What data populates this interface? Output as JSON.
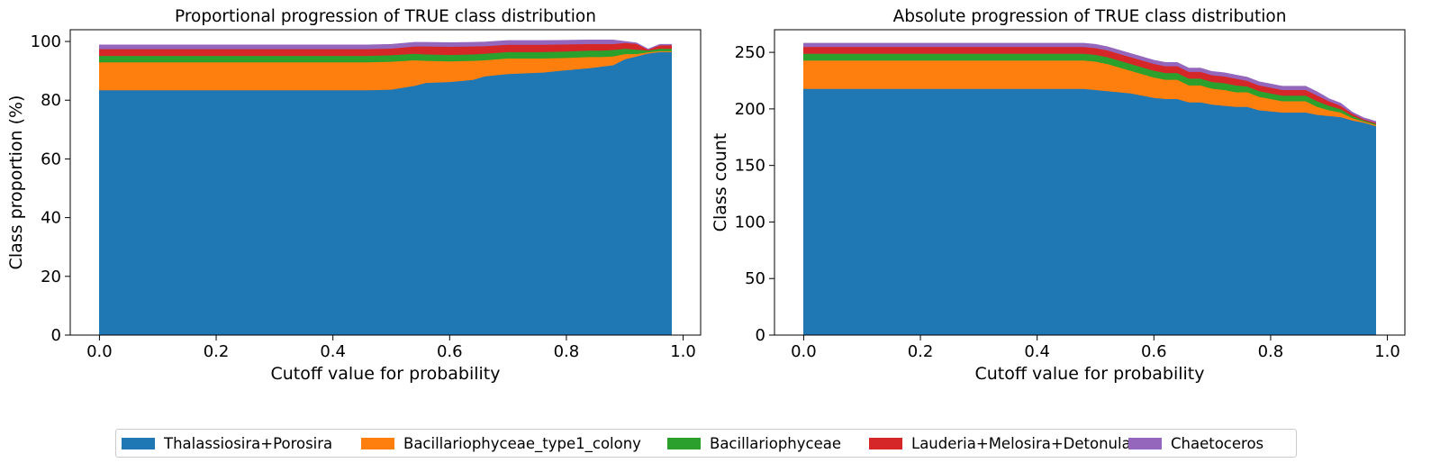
{
  "chart_data": [
    {
      "type": "area",
      "stacked": true,
      "title": "Proportional progression of TRUE class distribution",
      "xlabel": "Cutoff value for probability",
      "ylabel": "Class proportion (%)",
      "xlim": [
        -0.05,
        1.03
      ],
      "ylim": [
        0,
        104
      ],
      "xticks": [
        "0.0",
        "0.2",
        "0.4",
        "0.6",
        "0.8",
        "1.0"
      ],
      "yticks": [
        "0",
        "20",
        "40",
        "60",
        "80",
        "100"
      ],
      "x": [
        0.0,
        0.1,
        0.2,
        0.3,
        0.4,
        0.46,
        0.5,
        0.54,
        0.56,
        0.6,
        0.64,
        0.66,
        0.7,
        0.76,
        0.8,
        0.84,
        0.86,
        0.88,
        0.9,
        0.92,
        0.94,
        0.96,
        0.98
      ],
      "series": [
        {
          "name": "Thalassiosira+Porosira",
          "values": [
            83.5,
            83.5,
            83.5,
            83.5,
            83.5,
            83.5,
            83.7,
            85.0,
            86.0,
            86.3,
            87.0,
            88.2,
            89.0,
            89.5,
            90.3,
            91.0,
            91.5,
            92.0,
            94.0,
            95.0,
            96.0,
            96.5,
            96.5
          ]
        },
        {
          "name": "Bacillariophyceae_type1_colony",
          "values": [
            9.5,
            9.5,
            9.5,
            9.5,
            9.5,
            9.5,
            9.5,
            8.7,
            7.5,
            7.0,
            6.5,
            5.5,
            5.3,
            4.8,
            4.2,
            3.8,
            3.3,
            3.0,
            1.8,
            0.8,
            0.4,
            0.3,
            0.3
          ]
        },
        {
          "name": "Bacillariophyceae",
          "values": [
            2.2,
            2.2,
            2.2,
            2.2,
            2.2,
            2.2,
            2.2,
            2.2,
            2.2,
            2.2,
            2.2,
            2.2,
            2.2,
            2.2,
            2.2,
            2.2,
            2.2,
            2.2,
            1.8,
            1.5,
            0.6,
            0.8,
            0.8
          ]
        },
        {
          "name": "Lauderia+Melosira+Detonula",
          "values": [
            2.3,
            2.3,
            2.3,
            2.3,
            2.3,
            2.3,
            2.3,
            2.5,
            2.7,
            2.8,
            2.7,
            2.6,
            2.5,
            2.5,
            2.4,
            2.2,
            2.2,
            2.0,
            2.0,
            2.0,
            0.3,
            1.2,
            1.2
          ]
        },
        {
          "name": "Chaetoceros",
          "values": [
            1.3,
            1.3,
            1.3,
            1.3,
            1.3,
            1.3,
            1.3,
            1.3,
            1.3,
            1.3,
            1.3,
            1.3,
            1.3,
            1.3,
            1.3,
            1.3,
            1.3,
            1.3,
            0.4,
            0.2,
            0.1,
            0.2,
            0.2
          ]
        }
      ]
    },
    {
      "type": "area",
      "stacked": true,
      "title": "Absolute progression of TRUE class distribution",
      "xlabel": "Cutoff value for probability",
      "ylabel": "Class count",
      "xlim": [
        -0.05,
        1.03
      ],
      "ylim": [
        0,
        270
      ],
      "xticks": [
        "0.0",
        "0.2",
        "0.4",
        "0.6",
        "0.8",
        "1.0"
      ],
      "yticks": [
        "0",
        "50",
        "100",
        "150",
        "200",
        "250"
      ],
      "x": [
        0.0,
        0.1,
        0.2,
        0.3,
        0.4,
        0.48,
        0.5,
        0.52,
        0.54,
        0.56,
        0.58,
        0.6,
        0.62,
        0.64,
        0.66,
        0.68,
        0.7,
        0.72,
        0.74,
        0.76,
        0.78,
        0.8,
        0.82,
        0.84,
        0.86,
        0.88,
        0.9,
        0.92,
        0.94,
        0.96,
        0.98
      ],
      "series": [
        {
          "name": "Thalassiosira+Porosira",
          "values": [
            218,
            218,
            218,
            218,
            218,
            218,
            217,
            216,
            215,
            214,
            212,
            210,
            209,
            209,
            206,
            206,
            204,
            203,
            202,
            202,
            199,
            198,
            197,
            197,
            197,
            195,
            194,
            193,
            190,
            188,
            185
          ]
        },
        {
          "name": "Bacillariophyceae_type1_colony",
          "values": [
            25,
            25,
            25,
            25,
            25,
            25,
            25,
            24,
            22,
            20,
            19,
            18,
            17,
            17,
            15,
            15,
            14,
            14,
            13,
            13,
            12,
            11,
            10,
            10,
            10,
            7,
            5,
            4,
            2,
            1,
            1
          ]
        },
        {
          "name": "Bacillariophyceae",
          "values": [
            6,
            6,
            6,
            6,
            6,
            6,
            6,
            6,
            6,
            6,
            6,
            6,
            6,
            6,
            6,
            6,
            6,
            6,
            6,
            5,
            5,
            5,
            5,
            5,
            5,
            5,
            4,
            3,
            2,
            1,
            1
          ]
        },
        {
          "name": "Lauderia+Melosira+Detonula",
          "values": [
            6,
            6,
            6,
            6,
            6,
            6,
            6,
            6,
            6,
            6,
            6,
            6,
            6,
            6,
            6,
            6,
            6,
            6,
            6,
            5,
            5,
            5,
            5,
            5,
            5,
            5,
            4,
            3,
            2,
            1,
            1
          ]
        },
        {
          "name": "Chaetoceros",
          "values": [
            3,
            3,
            3,
            3,
            3,
            3,
            3,
            3,
            3,
            3,
            3,
            3,
            3,
            3,
            3,
            3,
            3,
            3,
            3,
            3,
            3,
            3,
            3,
            3,
            3,
            3,
            2,
            2,
            1,
            1,
            1
          ]
        }
      ]
    }
  ],
  "legend": {
    "placement": "bottom-center",
    "items": [
      {
        "label": "Thalassiosira+Porosira",
        "color": "#1f77b4"
      },
      {
        "label": "Bacillariophyceae_type1_colony",
        "color": "#ff7f0e"
      },
      {
        "label": "Bacillariophyceae",
        "color": "#2ca02c"
      },
      {
        "label": "Lauderia+Melosira+Detonula",
        "color": "#d62728"
      },
      {
        "label": "Chaetoceros",
        "color": "#9467bd"
      }
    ]
  }
}
